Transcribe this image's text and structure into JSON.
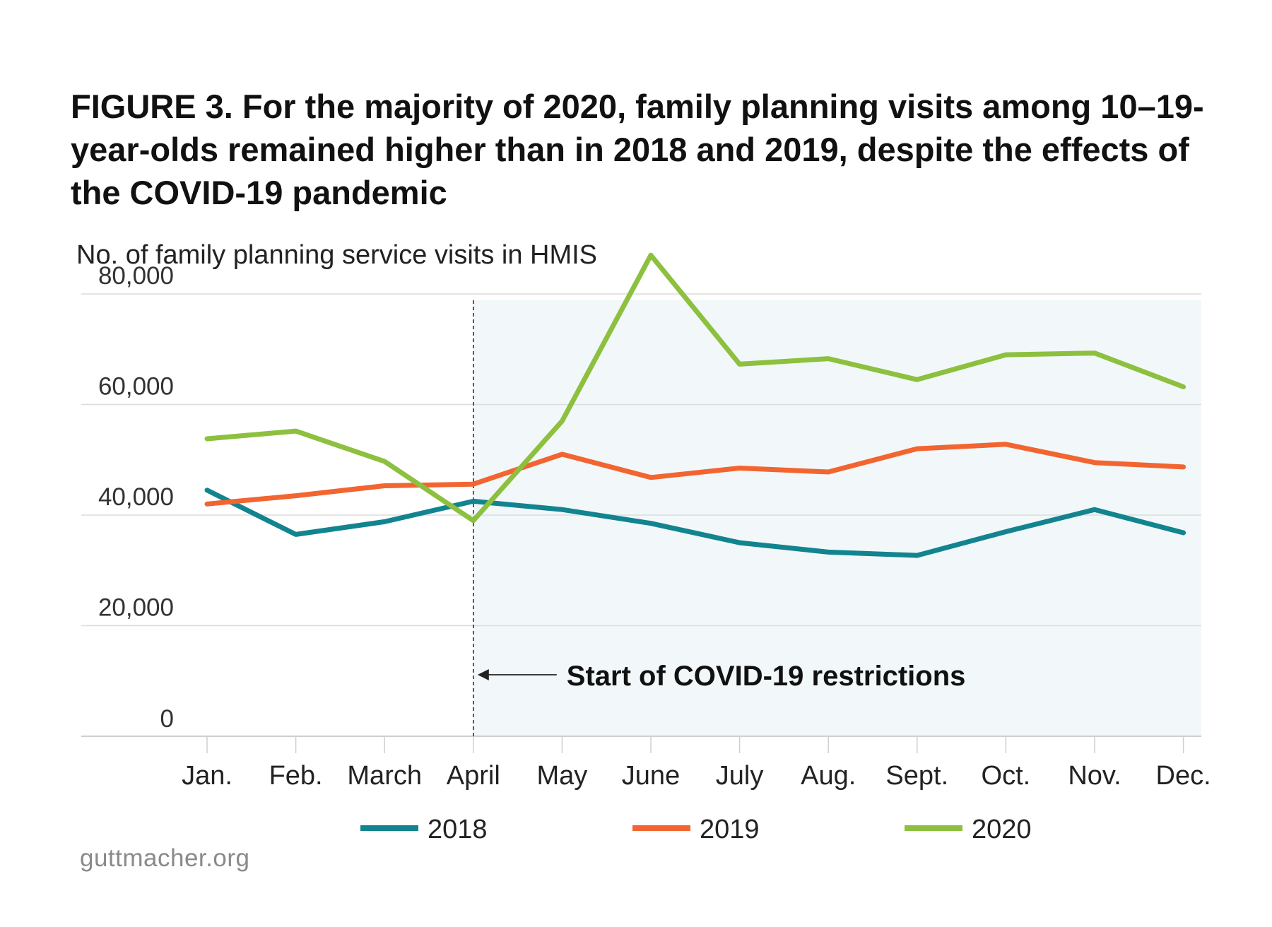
{
  "chart_data": {
    "type": "line",
    "title": "FIGURE 3. For the majority of 2020, family planning visits among 10–19-year-olds remained higher than in 2018 and 2019, despite the effects of the COVID-19 pandemic",
    "ylabel": "No. of family planning service visits in HMIS",
    "xlabel": "",
    "categories": [
      "Jan.",
      "Feb.",
      "March",
      "April",
      "May",
      "June",
      "July",
      "Aug.",
      "Sept.",
      "Oct.",
      "Nov.",
      "Dec."
    ],
    "ylim": [
      0,
      80000
    ],
    "yticks": [
      0,
      20000,
      40000,
      60000,
      80000
    ],
    "ytick_labels": [
      "0",
      "20,000",
      "40,000",
      "60,000",
      "80,000"
    ],
    "grid": true,
    "series": [
      {
        "name": "2018",
        "color": "#12848f",
        "values": [
          44500,
          36500,
          38800,
          42500,
          41000,
          38500,
          35000,
          33300,
          32700,
          37000,
          41000,
          36800
        ]
      },
      {
        "name": "2019",
        "color": "#f26531",
        "values": [
          42000,
          43500,
          45300,
          45600,
          51000,
          46800,
          48500,
          47800,
          52000,
          52800,
          49500,
          48700
        ]
      },
      {
        "name": "2020",
        "color": "#8dc03f",
        "values": [
          53800,
          55200,
          49700,
          39000,
          57000,
          87000,
          67300,
          68300,
          64500,
          69000,
          69300,
          63200
        ]
      }
    ],
    "annotation": {
      "text": "Start of COVID-19 restrictions",
      "at_category": "April"
    },
    "shaded_region": {
      "from": "April",
      "to": "Dec.",
      "color": "#f2f8f9"
    },
    "legend_position": "bottom-center"
  },
  "source": "guttmacher.org"
}
